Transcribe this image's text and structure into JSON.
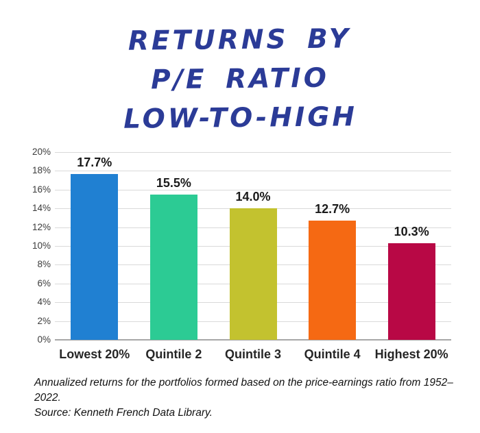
{
  "chart_data": {
    "type": "bar",
    "title": "Returns by P/E Ratio Low-to-High",
    "title_lines": [
      "RETURNS BY",
      "P/E RATIO",
      "LOW-TO-HIGH"
    ],
    "categories": [
      "Lowest 20%",
      "Quintile 2",
      "Quintile 3",
      "Quintile 4",
      "Highest 20%"
    ],
    "values": [
      17.7,
      15.5,
      14.0,
      12.7,
      10.3
    ],
    "value_labels": [
      "17.7%",
      "15.5%",
      "14.0%",
      "12.7%",
      "10.3%"
    ],
    "bar_colors": [
      "#2080D2",
      "#2CCB94",
      "#C3C22F",
      "#F56913",
      "#B80845"
    ],
    "xlabel": "",
    "ylabel": "",
    "ylim": [
      0,
      20
    ],
    "ytick_step": 2,
    "ytick_labels": [
      "0%",
      "2%",
      "4%",
      "6%",
      "8%",
      "10%",
      "12%",
      "14%",
      "16%",
      "18%",
      "20%"
    ],
    "grid": true,
    "legend": false,
    "colors": {
      "title": "#2B3B97",
      "gridline": "#D9D9D9",
      "axis_line": "#A7A7A7",
      "value_label_text": "#1A1A1A",
      "category_label_text": "#262626",
      "tick_text": "#3B3B3B",
      "background": "#FFFFFF"
    }
  },
  "footnote": {
    "line1": "Annualized returns for the portfolios formed based on the price-earnings ratio from 1952–2022.",
    "line2": "Source: Kenneth French Data Library."
  }
}
